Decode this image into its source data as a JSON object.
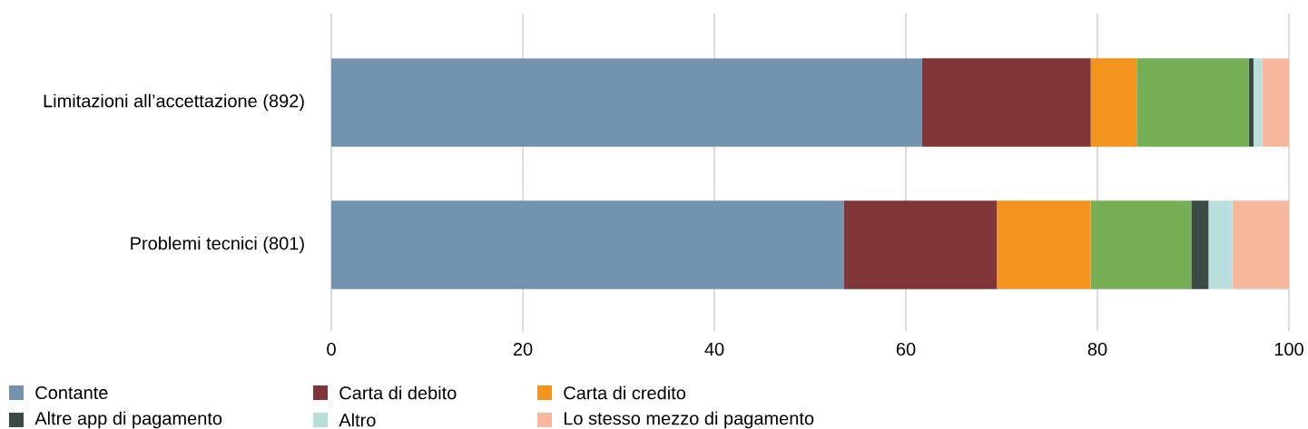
{
  "chart_data": {
    "type": "bar",
    "orientation": "horizontal",
    "stacked": true,
    "categories": [
      "Limitazioni all’accettazione (892)",
      "Problemi tecnici (801)"
    ],
    "series": [
      {
        "name": "Contante",
        "color": "#7293b0",
        "values": [
          61.7,
          53.5
        ]
      },
      {
        "name": "Carta di debito",
        "color": "#803537",
        "values": [
          17.6,
          16.0
        ]
      },
      {
        "name": "Carta di credito",
        "color": "#f3941e",
        "values": [
          4.8,
          9.8
        ]
      },
      {
        "color": "#75ae54",
        "values": [
          11.7,
          10.5
        ]
      },
      {
        "name": "Altre app di pagamento",
        "color": "#3b4a43",
        "values": [
          0.5,
          1.8
        ]
      },
      {
        "name": "Altro",
        "color": "#b9dede",
        "values": [
          0.9,
          2.5
        ]
      },
      {
        "name": "Lo stesso mezzo di pagamento",
        "color": "#f7b79c",
        "values": [
          2.8,
          5.9
        ]
      }
    ],
    "xlim": [
      0,
      100
    ],
    "xticks": [
      0,
      20,
      40,
      60,
      80,
      100
    ],
    "grid": "x",
    "legend": "bottom"
  }
}
